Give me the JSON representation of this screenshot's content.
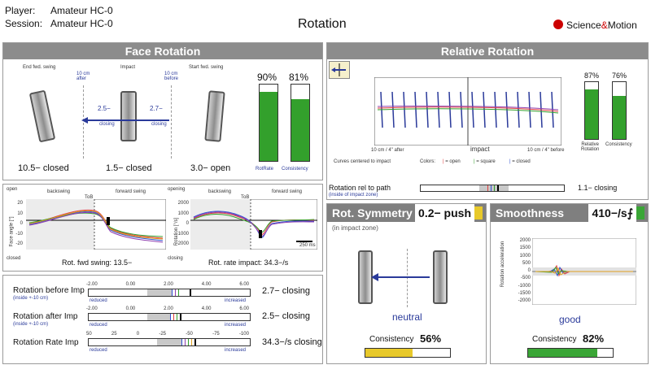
{
  "header": {
    "player_label": "Player:",
    "player_value": "Amateur HC-0",
    "session_label": "Session:",
    "session_value": "Amateur HC-0",
    "title": "Rotation",
    "brand": "Science",
    "brand_amp": "&",
    "brand2": "Motion"
  },
  "face_rotation": {
    "title": "Face Rotation",
    "end_label": "End fwd. swing",
    "impact_label": "Impact",
    "start_label": "Start fwd. swing",
    "after_label": "10 cm\nafter",
    "before_label": "10 cm\nbefore",
    "arrow1_value": "2.5−",
    "arrow1_text": "closing",
    "arrow2_value": "2.7−",
    "arrow2_text": "closing",
    "end_value": "10.5− closed",
    "impact_value": "1.5− closed",
    "start_value": "3.0− open",
    "rotrate_pct": "90%",
    "consistency_pct": "81%",
    "rotrate_label": "RotRate",
    "consistency_label": "Consistency",
    "rotrate_level": 0.9,
    "consistency_level": 0.81
  },
  "plots": {
    "left": {
      "top_left": "open",
      "bottom_left": "closed",
      "backswing": "backswing",
      "forward": "forward swing",
      "tob": "ToB",
      "ylabel": "Face angle [°]",
      "ticks": [
        "20",
        "10",
        "0",
        "-10",
        "-20"
      ],
      "caption": "Rot. fwd swing: 13.5−"
    },
    "right": {
      "top_left": "opening",
      "bottom_left": "closing",
      "backswing": "backswing",
      "forward": "forward swing",
      "tob": "ToB",
      "ylabel": "Rotation [°/s]",
      "ticks": [
        "2000",
        "1000",
        "0",
        "-1000",
        "-2000"
      ],
      "scale": "250 ms",
      "caption": "Rot. rate impact: 34.3−/s"
    }
  },
  "rotation_metrics": [
    {
      "label": "Rotation before Imp",
      "sub": "(inside +-10 cm)",
      "ticks": [
        "-2.00",
        "0.00",
        "2.00",
        "4.00",
        "6.00"
      ],
      "left": "reduced",
      "right": "increased",
      "value": "2.7− closing"
    },
    {
      "label": "Rotation after Imp",
      "sub": "(inside +-10 cm)",
      "ticks": [
        "-2.00",
        "0.00",
        "2.00",
        "4.00",
        "6.00"
      ],
      "left": "reduced",
      "right": "increased",
      "value": "2.5− closing"
    },
    {
      "label": "Rotation Rate Imp",
      "sub": "",
      "ticks": [
        "50",
        "25",
        "0",
        "-25",
        "-50",
        "-75",
        "-100"
      ],
      "left": "reduced",
      "right": "increased",
      "value": "34.3−/s closing"
    }
  ],
  "relative_rotation": {
    "title": "Relative Rotation",
    "impact": "impact",
    "after": "10 cm / 4\" after",
    "before": "10 cm / 4\" before",
    "pct1": "87%",
    "pct2": "76%",
    "bar1_label": "Relative\nRotation",
    "bar2_label": "Consistency",
    "level1": 0.87,
    "level2": 0.76,
    "note": "Curves centered to impact",
    "colors_label": "Colors:",
    "legend_open": "= open",
    "legend_square": "= square",
    "legend_closed": "= closed",
    "rel_path_label": "Rotation rel to path",
    "rel_path_sub": "(inside of impact zone)",
    "rel_path_value": "1.1− closing"
  },
  "symmetry": {
    "title": "Rot. Symmetry",
    "value": "0.2− push",
    "sub": "(in impact zone)",
    "result": "neutral",
    "consistency_label": "Consistency",
    "consistency_pct": "56%",
    "level": 0.56,
    "accent": "#e8c92a"
  },
  "smoothness": {
    "title": "Smoothness",
    "value": "410−/s⨍",
    "ylabel": "Rotation acceleration",
    "ticks": [
      "2000",
      "1500",
      "1000",
      "500",
      "0",
      "-500",
      "-1000",
      "-1500",
      "-2000"
    ],
    "result": "good",
    "consistency_label": "Consistency",
    "consistency_pct": "82%",
    "level": 0.82,
    "accent": "#3aa636"
  }
}
